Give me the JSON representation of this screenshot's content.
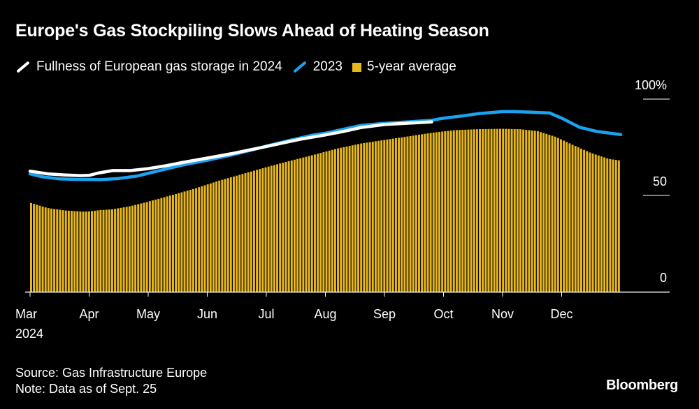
{
  "footer": {
    "source": "Source: Gas Infrastructure Europe",
    "note": "Note: Data as of Sept. 25",
    "brand": "Bloomberg"
  },
  "colors": {
    "background": "#000000",
    "line_2024": "#ffffff",
    "line_2023": "#1aa3f0",
    "bars_5yr": "#e8b71c"
  },
  "chart_data": {
    "type": "bar",
    "title": "Europe's Gas Stockpiling Slows Ahead of Heating Season",
    "xlabel": "",
    "ylabel": "",
    "ylim": [
      0,
      100
    ],
    "y_ticks": [
      {
        "value": 100,
        "label": "100%"
      },
      {
        "value": 50,
        "label": "50"
      },
      {
        "value": 0,
        "label": "0"
      }
    ],
    "x_ticks": [
      {
        "value": 0,
        "label": "Mar"
      },
      {
        "value": 1,
        "label": "Apr"
      },
      {
        "value": 2,
        "label": "May"
      },
      {
        "value": 3,
        "label": "Jun"
      },
      {
        "value": 4,
        "label": "Jul"
      },
      {
        "value": 5,
        "label": "Aug"
      },
      {
        "value": 6,
        "label": "Sep"
      },
      {
        "value": 7,
        "label": "Oct"
      },
      {
        "value": 8,
        "label": "Nov"
      },
      {
        "value": 9,
        "label": "Dec"
      }
    ],
    "x_sublabel": "2024",
    "xlim": [
      0,
      10
    ],
    "legend": {
      "placement": "top-left",
      "entries": [
        {
          "name": "Fullness of European gas storage in 2024",
          "marker": "line"
        },
        {
          "name": "2023",
          "marker": "line"
        },
        {
          "name": "5-year average",
          "marker": "square"
        }
      ]
    },
    "series": [
      {
        "name": "Fullness of European gas storage in 2024",
        "type": "line",
        "x": [
          0,
          0.3,
          0.6,
          0.85,
          1.0,
          1.15,
          1.4,
          1.7,
          2.0,
          2.3,
          2.6,
          3.0,
          3.4,
          3.7,
          4.0,
          4.3,
          4.6,
          5.0,
          5.3,
          5.6,
          6.0,
          6.4,
          6.8
        ],
        "values": [
          62.6,
          61.2,
          60.6,
          60.3,
          60.4,
          61.6,
          62.9,
          62.9,
          63.9,
          65.4,
          67.2,
          69.4,
          71.6,
          73.5,
          75.4,
          77.4,
          79.3,
          81.4,
          83.2,
          85.2,
          86.8,
          87.5,
          88.2
        ]
      },
      {
        "name": "2023",
        "type": "line",
        "x": [
          0,
          0.2,
          0.5,
          0.8,
          1.0,
          1.2,
          1.5,
          1.8,
          2.0,
          2.3,
          2.6,
          3.0,
          3.4,
          3.8,
          4.0,
          4.4,
          4.8,
          5.0,
          5.3,
          5.6,
          6.0,
          6.4,
          6.8,
          7.0,
          7.3,
          7.6,
          8.0,
          8.2,
          8.5,
          8.8,
          9.0,
          9.3,
          9.6,
          10.0
        ],
        "values": [
          61.2,
          59.7,
          58.6,
          58.3,
          58.3,
          58.2,
          58.8,
          60.0,
          61.5,
          63.7,
          65.9,
          68.3,
          70.9,
          73.9,
          75.6,
          78.6,
          81.4,
          82.3,
          84.3,
          86.3,
          87.4,
          88.2,
          89.0,
          90.1,
          91.2,
          92.5,
          93.5,
          93.5,
          93.2,
          92.8,
          90.1,
          85.4,
          83.2,
          81.6
        ]
      },
      {
        "name": "5-year average",
        "type": "bar",
        "x": [
          0,
          0.3,
          0.6,
          0.9,
          1.0,
          1.2,
          1.4,
          1.7,
          2.0,
          2.4,
          2.8,
          3.2,
          3.6,
          4.0,
          4.4,
          4.8,
          5.2,
          5.6,
          6.0,
          6.4,
          6.8,
          7.2,
          7.6,
          8.0,
          8.3,
          8.6,
          8.9,
          9.2,
          9.5,
          9.8,
          10.0
        ],
        "values": [
          46.3,
          43.5,
          42.2,
          41.6,
          41.7,
          42.4,
          42.8,
          44.4,
          46.7,
          50.1,
          53.6,
          57.6,
          61.1,
          64.6,
          67.9,
          71.0,
          74.3,
          76.9,
          78.8,
          80.6,
          82.5,
          83.9,
          84.4,
          84.6,
          84.4,
          83.4,
          80.5,
          76.2,
          72.1,
          69.0,
          68.1
        ]
      }
    ]
  }
}
